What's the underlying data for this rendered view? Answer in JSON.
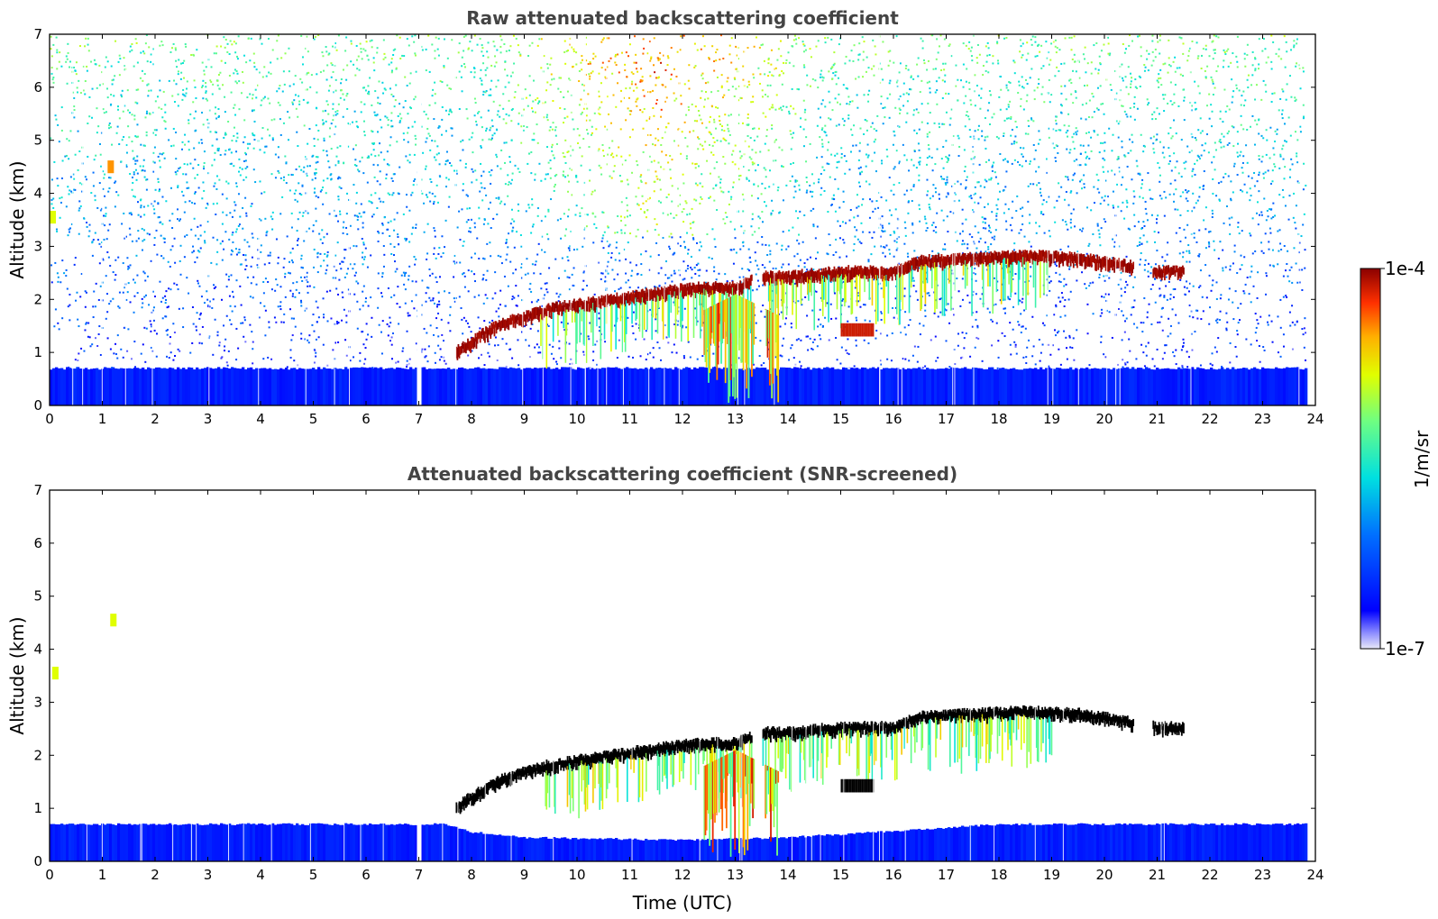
{
  "chart_data": [
    {
      "type": "heatmap",
      "title": "Raw attenuated backscattering coefficient",
      "xlabel": "",
      "ylabel": "Altitude (km)",
      "xlim": [
        0,
        24
      ],
      "ylim": [
        0,
        7
      ],
      "x_ticks": [
        "0",
        "1",
        "2",
        "3",
        "4",
        "5",
        "6",
        "7",
        "8",
        "9",
        "10",
        "11",
        "12",
        "13",
        "14",
        "15",
        "16",
        "17",
        "18",
        "19",
        "20",
        "21",
        "22",
        "23",
        "24"
      ],
      "y_ticks": [
        "0",
        "1",
        "2",
        "3",
        "4",
        "5",
        "6",
        "7"
      ],
      "data_end_hour": 23.8,
      "gap_hours": [
        7.0
      ],
      "noise_background": "sparse noise increasing with altitude; reddish above 3 km between 9 and 14 UTC",
      "boundary_layer_top_km": 0.7,
      "cloud_top_km": [
        {
          "t": 7.7,
          "alt": 1.1
        },
        {
          "t": 8.5,
          "alt": 1.6
        },
        {
          "t": 9.5,
          "alt": 1.9
        },
        {
          "t": 10.5,
          "alt": 2.05
        },
        {
          "t": 11.5,
          "alt": 2.2
        },
        {
          "t": 12.3,
          "alt": 2.3
        },
        {
          "t": 13.0,
          "alt": 2.3
        },
        {
          "t": 13.5,
          "alt": 2.5
        },
        {
          "t": 14.0,
          "alt": 2.5
        },
        {
          "t": 15.0,
          "alt": 2.6
        },
        {
          "t": 16.0,
          "alt": 2.6
        },
        {
          "t": 16.5,
          "alt": 2.8
        },
        {
          "t": 17.5,
          "alt": 2.85
        },
        {
          "t": 18.5,
          "alt": 2.9
        },
        {
          "t": 19.5,
          "alt": 2.85
        },
        {
          "t": 20.5,
          "alt": 2.7
        },
        {
          "t": 21.0,
          "alt": 2.6
        },
        {
          "t": 21.5,
          "alt": 2.6
        }
      ],
      "isolated_features": [
        {
          "t": 1.1,
          "alt": 4.5,
          "level": "high"
        },
        {
          "t": 0.0,
          "alt": 3.55,
          "level": "medium"
        }
      ],
      "colorbar": {
        "min_label": "1e-7",
        "max_label": "1e-4",
        "unit": "1/m/sr",
        "scale": "log"
      }
    },
    {
      "type": "heatmap",
      "title": "Attenuated backscattering coefficient (SNR-screened)",
      "xlabel": "Time (UTC)",
      "ylabel": "Altitude (km)",
      "xlim": [
        0,
        24
      ],
      "ylim": [
        0,
        7
      ],
      "x_ticks": [
        "0",
        "1",
        "2",
        "3",
        "4",
        "5",
        "6",
        "7",
        "8",
        "9",
        "10",
        "11",
        "12",
        "13",
        "14",
        "15",
        "16",
        "17",
        "18",
        "19",
        "20",
        "21",
        "22",
        "23",
        "24"
      ],
      "y_ticks": [
        "0",
        "1",
        "2",
        "3",
        "4",
        "5",
        "6",
        "7"
      ],
      "data_end_hour": 23.8,
      "gap_hours": [
        7.0
      ],
      "screened_boundary_layer": [
        {
          "t": 0,
          "top": 0.7
        },
        {
          "t": 7.5,
          "top": 0.7
        },
        {
          "t": 8.0,
          "top": 0.55
        },
        {
          "t": 9.0,
          "top": 0.45
        },
        {
          "t": 12.0,
          "top": 0.4
        },
        {
          "t": 14.0,
          "top": 0.45
        },
        {
          "t": 16.5,
          "top": 0.6
        },
        {
          "t": 18.0,
          "top": 0.7
        },
        {
          "t": 23.8,
          "top": 0.7
        }
      ],
      "cloud_top_km": "same as panel 1 (saturated, shown black)",
      "isolated_features": [
        {
          "t": 1.15,
          "alt": 4.55,
          "level": "medium"
        },
        {
          "t": 0.05,
          "alt": 3.55,
          "level": "medium"
        }
      ],
      "colorbar": {
        "min_label": "1e-7",
        "max_label": "1e-4",
        "unit": "1/m/sr",
        "scale": "log"
      }
    }
  ],
  "colors": {
    "background": "#ffffff",
    "title": "#444444",
    "saturated_screened": "#000000"
  }
}
